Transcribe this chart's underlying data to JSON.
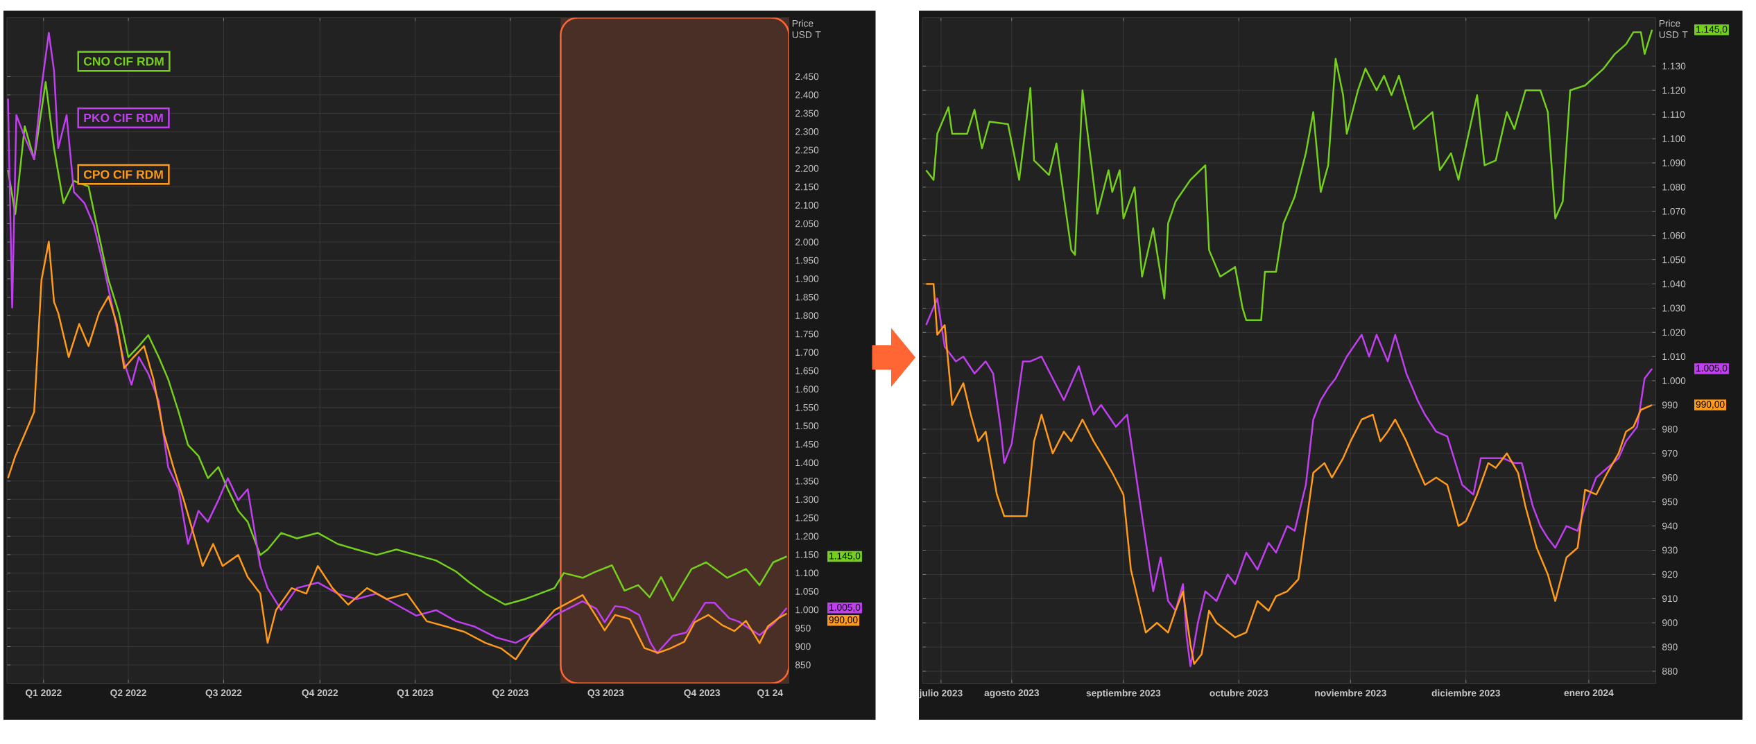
{
  "chart_data": [
    {
      "type": "line",
      "ylabel": "Price USD T",
      "grid": true,
      "legend": "top left",
      "xlim": [
        "2022-01-20",
        "2024-02-06"
      ],
      "ylim": [
        800,
        2610
      ],
      "xticks": [
        {
          "value": "2022-02-24",
          "label": "Q1 2022"
        },
        {
          "value": "2022-05-16",
          "label": "Q2 2022"
        },
        {
          "value": "2022-08-15",
          "label": "Q3 2022"
        },
        {
          "value": "2022-11-15",
          "label": "Q4 2022"
        },
        {
          "value": "2023-02-14",
          "label": "Q1 2023"
        },
        {
          "value": "2023-05-16",
          "label": "Q2 2023"
        },
        {
          "value": "2023-08-15",
          "label": "Q3 2023"
        },
        {
          "value": "2023-11-15",
          "label": "Q4 2023"
        },
        {
          "value": "2024-01-19",
          "label": "Q1 24"
        }
      ],
      "yticks": [
        850,
        900,
        950,
        {
          "value": 1000,
          "label": "1.000"
        },
        {
          "value": 1050,
          "label": "1.050"
        },
        {
          "value": 1100,
          "label": "1.100"
        },
        {
          "value": 1150,
          "label": "1.150"
        },
        {
          "value": 1200,
          "label": "1.200"
        },
        {
          "value": 1250,
          "label": "1.250"
        },
        {
          "value": 1300,
          "label": "1.300"
        },
        {
          "value": 1350,
          "label": "1.350"
        },
        {
          "value": 1400,
          "label": "1.400"
        },
        {
          "value": 1450,
          "label": "1.450"
        },
        {
          "value": 1500,
          "label": "1.500"
        },
        {
          "value": 1550,
          "label": "1.550"
        },
        {
          "value": 1600,
          "label": "1.600"
        },
        {
          "value": 1650,
          "label": "1.650"
        },
        {
          "value": 1700,
          "label": "1.700"
        },
        {
          "value": 1750,
          "label": "1.750"
        },
        {
          "value": 1800,
          "label": "1.800"
        },
        {
          "value": 1850,
          "label": "1.850"
        },
        {
          "value": 1900,
          "label": "1.900"
        },
        {
          "value": 1950,
          "label": "1.950"
        },
        {
          "value": 2000,
          "label": "2.000"
        },
        {
          "value": 2050,
          "label": "2.050"
        },
        {
          "value": 2100,
          "label": "2.100"
        },
        {
          "value": 2150,
          "label": "2.150"
        },
        {
          "value": 2200,
          "label": "2.200"
        },
        {
          "value": 2250,
          "label": "2.250"
        },
        {
          "value": 2300,
          "label": "2.300"
        },
        {
          "value": 2350,
          "label": "2.350"
        },
        {
          "value": 2400,
          "label": "2.400"
        },
        {
          "value": 2450,
          "label": "2.450"
        }
      ],
      "bands": [
        {
          "axis": "x",
          "from": "2023-07-03",
          "to": "2024-02-06",
          "color": "#4a2f26"
        }
      ],
      "annotations": [
        "1.145,0",
        "1.005,0",
        "990,00"
      ],
      "series": [
        {
          "name": "CNO CIF RDM",
          "color": "#74d01c",
          "x": [
            "2022-01-21",
            "2022-01-28",
            "2022-02-06",
            "2022-02-15",
            "2022-02-26",
            "2022-03-06",
            "2022-03-15",
            "2022-03-25",
            "2022-04-08",
            "2022-04-18",
            "2022-04-27",
            "2022-05-07",
            "2022-05-16",
            "2022-05-26",
            "2022-06-04",
            "2022-06-14",
            "2022-06-23",
            "2022-07-03",
            "2022-07-12",
            "2022-07-22",
            "2022-07-31",
            "2022-08-10",
            "2022-08-19",
            "2022-08-29",
            "2022-09-07",
            "2022-09-19",
            "2022-09-26",
            "2022-10-09",
            "2022-10-24",
            "2022-11-13",
            "2022-12-02",
            "2022-12-20",
            "2023-01-08",
            "2023-01-27",
            "2023-02-15",
            "2023-03-06",
            "2023-03-25",
            "2023-04-07",
            "2023-04-22",
            "2023-05-11",
            "2023-05-30",
            "2023-06-13",
            "2023-06-27",
            "2023-07-06",
            "2023-07-24",
            "2023-08-04",
            "2023-08-21",
            "2023-09-02",
            "2023-09-15",
            "2023-09-26",
            "2023-10-07",
            "2023-10-18",
            "2023-11-05",
            "2023-11-19",
            "2023-12-09",
            "2023-12-27",
            "2024-01-09",
            "2024-01-22",
            "2024-02-04"
          ],
          "values": [
            2196,
            2076,
            2315,
            2225,
            2435,
            2255,
            2106,
            2166,
            2151,
            2016,
            1897,
            1807,
            1687,
            1717,
            1747,
            1687,
            1627,
            1538,
            1448,
            1418,
            1358,
            1388,
            1328,
            1269,
            1239,
            1149,
            1164,
            1209,
            1194,
            1209,
            1179,
            1164,
            1149,
            1164,
            1149,
            1134,
            1104,
            1074,
            1044,
            1014,
            1029,
            1044,
            1059,
            1100,
            1087,
            1102,
            1121,
            1052,
            1067,
            1034,
            1089,
            1025,
            1111,
            1129,
            1087,
            1111,
            1067,
            1129,
            1145
          ]
        },
        {
          "name": "PKO CIF RDM",
          "color": "#c040f0",
          "x": [
            "2022-01-21",
            "2022-01-25",
            "2022-01-29",
            "2022-02-06",
            "2022-02-15",
            "2022-02-22",
            "2022-03-01",
            "2022-03-06",
            "2022-03-10",
            "2022-03-18",
            "2022-03-25",
            "2022-04-04",
            "2022-04-13",
            "2022-04-23",
            "2022-05-02",
            "2022-05-12",
            "2022-05-19",
            "2022-05-26",
            "2022-06-04",
            "2022-06-14",
            "2022-06-23",
            "2022-07-03",
            "2022-07-12",
            "2022-07-22",
            "2022-07-31",
            "2022-08-10",
            "2022-08-19",
            "2022-08-29",
            "2022-09-07",
            "2022-09-19",
            "2022-09-26",
            "2022-10-09",
            "2022-10-24",
            "2022-11-13",
            "2022-12-02",
            "2022-12-20",
            "2023-01-08",
            "2023-01-27",
            "2023-02-15",
            "2023-03-06",
            "2023-03-25",
            "2023-04-12",
            "2023-05-02",
            "2023-05-21",
            "2023-06-09",
            "2023-06-27",
            "2023-07-24",
            "2023-08-06",
            "2023-08-14",
            "2023-08-24",
            "2023-09-03",
            "2023-09-16",
            "2023-09-27",
            "2023-10-03",
            "2023-10-18",
            "2023-10-31",
            "2023-11-18",
            "2023-11-27",
            "2023-12-11",
            "2023-12-20",
            "2024-01-09",
            "2024-01-23",
            "2024-02-04"
          ],
          "values": [
            2390,
            1822,
            2345,
            2285,
            2225,
            2420,
            2569,
            2465,
            2255,
            2345,
            2136,
            2106,
            2046,
            1926,
            1807,
            1672,
            1612,
            1687,
            1642,
            1568,
            1388,
            1328,
            1179,
            1269,
            1239,
            1298,
            1358,
            1298,
            1328,
            1119,
            1059,
            999,
            1059,
            1074,
            1044,
            1029,
            1044,
            1014,
            984,
            999,
            969,
            954,
            925,
            910,
            940,
            984,
            1023,
            1003,
            966,
            1010,
            1006,
            986,
            909,
            882,
            929,
            938,
            1019,
            1019,
            977,
            968,
            931,
            964,
            1005
          ]
        },
        {
          "name": "CPO CIF RDM",
          "color": "#ff9a1a",
          "x": [
            "2022-01-21",
            "2022-01-28",
            "2022-02-06",
            "2022-02-15",
            "2022-02-22",
            "2022-03-01",
            "2022-03-06",
            "2022-03-10",
            "2022-03-20",
            "2022-03-30",
            "2022-04-08",
            "2022-04-18",
            "2022-04-27",
            "2022-05-05",
            "2022-05-12",
            "2022-05-21",
            "2022-05-31",
            "2022-06-09",
            "2022-06-19",
            "2022-06-28",
            "2022-07-08",
            "2022-07-17",
            "2022-07-26",
            "2022-08-05",
            "2022-08-14",
            "2022-08-29",
            "2022-09-07",
            "2022-09-19",
            "2022-09-26",
            "2022-10-04",
            "2022-10-19",
            "2022-11-02",
            "2022-11-13",
            "2022-11-27",
            "2022-12-12",
            "2022-12-30",
            "2023-01-18",
            "2023-02-06",
            "2023-02-25",
            "2023-03-16",
            "2023-04-02",
            "2023-04-22",
            "2023-05-07",
            "2023-05-21",
            "2023-06-04",
            "2023-06-18",
            "2023-06-27",
            "2023-07-24",
            "2023-08-05",
            "2023-08-14",
            "2023-08-24",
            "2023-09-07",
            "2023-09-21",
            "2023-10-04",
            "2023-10-15",
            "2023-10-29",
            "2023-11-08",
            "2023-11-21",
            "2023-12-05",
            "2023-12-16",
            "2023-12-27",
            "2024-01-09",
            "2024-01-17",
            "2024-01-28",
            "2024-02-04"
          ],
          "values": [
            1358,
            1418,
            1478,
            1538,
            1897,
            2001,
            1837,
            1807,
            1687,
            1777,
            1717,
            1807,
            1852,
            1777,
            1657,
            1687,
            1717,
            1627,
            1478,
            1388,
            1298,
            1209,
            1119,
            1179,
            1119,
            1149,
            1089,
            1044,
            910,
            999,
            1059,
            1044,
            1119,
            1059,
            1014,
            1059,
            1029,
            1044,
            969,
            954,
            940,
            910,
            895,
            865,
            925,
            969,
            999,
            1040,
            986,
            944,
            986,
            975,
            896,
            883,
            894,
            913,
            966,
            986,
            957,
            942,
            970,
            909,
            955,
            979,
            990
          ]
        }
      ]
    },
    {
      "type": "line",
      "ylabel": "Price USD T",
      "grid": true,
      "xlim": [
        "2023-07-23",
        "2024-02-05"
      ],
      "ylim": [
        875,
        1150
      ],
      "xticks": [
        {
          "value": "2023-07-28",
          "label": "julio 2023"
        },
        {
          "value": "2023-08-16",
          "label": "agosto 2023"
        },
        {
          "value": "2023-09-15",
          "label": "septiembre 2023"
        },
        {
          "value": "2023-10-16",
          "label": "octubre 2023"
        },
        {
          "value": "2023-11-15",
          "label": "noviembre 2023"
        },
        {
          "value": "2023-12-16",
          "label": "diciembre 2023"
        },
        {
          "value": "2024-01-18",
          "label": "enero 2024"
        }
      ],
      "yticks": [
        880,
        890,
        900,
        910,
        920,
        930,
        940,
        950,
        960,
        970,
        980,
        990,
        {
          "value": 1000,
          "label": "1.000"
        },
        {
          "value": 1010,
          "label": "1.010"
        },
        {
          "value": 1020,
          "label": "1.020"
        },
        {
          "value": 1030,
          "label": "1.030"
        },
        {
          "value": 1040,
          "label": "1.040"
        },
        {
          "value": 1050,
          "label": "1.050"
        },
        {
          "value": 1060,
          "label": "1.060"
        },
        {
          "value": 1070,
          "label": "1.070"
        },
        {
          "value": 1080,
          "label": "1.080"
        },
        {
          "value": 1090,
          "label": "1.090"
        },
        {
          "value": 1100,
          "label": "1.100"
        },
        {
          "value": 1110,
          "label": "1.110"
        },
        {
          "value": 1120,
          "label": "1.120"
        },
        {
          "value": 1130,
          "label": "1.130"
        }
      ],
      "annotations": [
        "1.145,0",
        "1.005,0",
        "990,00"
      ],
      "series": [
        {
          "color": "#74d01c",
          "x": [
            "2023-07-24",
            "2023-07-26",
            "2023-07-27",
            "2023-07-30",
            "2023-07-31",
            "2023-08-04",
            "2023-08-06",
            "2023-08-08",
            "2023-08-10",
            "2023-08-15",
            "2023-08-18",
            "2023-08-21",
            "2023-08-22",
            "2023-08-26",
            "2023-08-28",
            "2023-09-01",
            "2023-09-02",
            "2023-09-04",
            "2023-09-05",
            "2023-09-08",
            "2023-09-11",
            "2023-09-12",
            "2023-09-14",
            "2023-09-15",
            "2023-09-18",
            "2023-09-20",
            "2023-09-23",
            "2023-09-26",
            "2023-09-27",
            "2023-09-29",
            "2023-10-03",
            "2023-10-07",
            "2023-10-08",
            "2023-10-11",
            "2023-10-15",
            "2023-10-17",
            "2023-10-18",
            "2023-10-22",
            "2023-10-23",
            "2023-10-26",
            "2023-10-28",
            "2023-10-31",
            "2023-11-03",
            "2023-11-05",
            "2023-11-07",
            "2023-11-09",
            "2023-11-11",
            "2023-11-13",
            "2023-11-14",
            "2023-11-17",
            "2023-11-19",
            "2023-11-22",
            "2023-11-24",
            "2023-11-26",
            "2023-11-28",
            "2023-12-02",
            "2023-12-07",
            "2023-12-09",
            "2023-12-12",
            "2023-12-14",
            "2023-12-17",
            "2023-12-19",
            "2023-12-21",
            "2023-12-24",
            "2023-12-27",
            "2023-12-29",
            "2024-01-01",
            "2024-01-05",
            "2024-01-07",
            "2024-01-09",
            "2024-01-11",
            "2024-01-13",
            "2024-01-17",
            "2024-01-22",
            "2024-01-25",
            "2024-01-28",
            "2024-01-30",
            "2024-02-01",
            "2024-02-02",
            "2024-02-04"
          ],
          "values": [
            1087,
            1083,
            1102,
            1113,
            1102,
            1102,
            1112,
            1096,
            1107,
            1106,
            1083,
            1121,
            1091,
            1085,
            1098,
            1054,
            1052,
            1120,
            1107,
            1069,
            1087,
            1078,
            1087,
            1067,
            1080,
            1043,
            1063,
            1034,
            1065,
            1074,
            1083,
            1089,
            1054,
            1043,
            1047,
            1030,
            1025,
            1025,
            1045,
            1045,
            1065,
            1076,
            1094,
            1111,
            1078,
            1089,
            1133,
            1118,
            1102,
            1120,
            1129,
            1120,
            1126,
            1118,
            1126,
            1104,
            1111,
            1087,
            1094,
            1083,
            1104,
            1118,
            1089,
            1091,
            1111,
            1104,
            1120,
            1120,
            1111,
            1067,
            1074,
            1120,
            1122,
            1129,
            1135,
            1139,
            1144,
            1144,
            1135,
            1145
          ]
        },
        {
          "color": "#c040f0",
          "x": [
            "2023-07-24",
            "2023-07-27",
            "2023-07-29",
            "2023-08-01",
            "2023-08-03",
            "2023-08-06",
            "2023-08-09",
            "2023-08-11",
            "2023-08-13",
            "2023-08-14",
            "2023-08-16",
            "2023-08-19",
            "2023-08-21",
            "2023-08-24",
            "2023-08-30",
            "2023-09-03",
            "2023-09-07",
            "2023-09-09",
            "2023-09-13",
            "2023-09-16",
            "2023-09-20",
            "2023-09-23",
            "2023-09-25",
            "2023-09-27",
            "2023-09-29",
            "2023-10-01",
            "2023-10-02",
            "2023-10-03",
            "2023-10-05",
            "2023-10-07",
            "2023-10-10",
            "2023-10-13",
            "2023-10-15",
            "2023-10-18",
            "2023-10-21",
            "2023-10-24",
            "2023-10-26",
            "2023-10-29",
            "2023-10-31",
            "2023-11-03",
            "2023-11-05",
            "2023-11-07",
            "2023-11-09",
            "2023-11-11",
            "2023-11-14",
            "2023-11-18",
            "2023-11-20",
            "2023-11-22",
            "2023-11-25",
            "2023-11-27",
            "2023-11-30",
            "2023-12-03",
            "2023-12-05",
            "2023-12-08",
            "2023-12-11",
            "2023-12-15",
            "2023-12-18",
            "2023-12-20",
            "2023-12-26",
            "2023-12-29",
            "2023-12-31",
            "2024-01-03",
            "2024-01-05",
            "2024-01-07",
            "2024-01-09",
            "2024-01-12",
            "2024-01-15",
            "2024-01-17",
            "2024-01-20",
            "2024-01-23",
            "2024-01-26",
            "2024-01-28",
            "2024-01-31",
            "2024-02-02",
            "2024-02-04"
          ],
          "values": [
            1023,
            1034,
            1014,
            1008,
            1010,
            1003,
            1008,
            1003,
            981,
            966,
            974,
            1008,
            1008,
            1010,
            992,
            1006,
            986,
            990,
            981,
            986,
            944,
            913,
            927,
            909,
            905,
            916,
            894,
            882,
            900,
            913,
            909,
            920,
            916,
            929,
            922,
            933,
            929,
            940,
            938,
            957,
            984,
            992,
            997,
            1001,
            1010,
            1019,
            1010,
            1019,
            1008,
            1019,
            1003,
            992,
            986,
            979,
            977,
            957,
            953,
            968,
            968,
            966,
            966,
            948,
            940,
            935,
            931,
            940,
            938,
            948,
            960,
            964,
            968,
            975,
            981,
            1001,
            1005
          ]
        },
        {
          "color": "#ff9a1a",
          "x": [
            "2023-07-24",
            "2023-07-26",
            "2023-07-27",
            "2023-07-29",
            "2023-07-31",
            "2023-08-03",
            "2023-08-05",
            "2023-08-07",
            "2023-08-09",
            "2023-08-12",
            "2023-08-14",
            "2023-08-20",
            "2023-08-22",
            "2023-08-24",
            "2023-08-27",
            "2023-08-30",
            "2023-09-01",
            "2023-09-04",
            "2023-09-07",
            "2023-09-09",
            "2023-09-12",
            "2023-09-15",
            "2023-09-17",
            "2023-09-21",
            "2023-09-24",
            "2023-09-27",
            "2023-09-29",
            "2023-10-01",
            "2023-10-03",
            "2023-10-04",
            "2023-10-06",
            "2023-10-08",
            "2023-10-10",
            "2023-10-15",
            "2023-10-18",
            "2023-10-21",
            "2023-10-24",
            "2023-10-26",
            "2023-10-29",
            "2023-11-01",
            "2023-11-03",
            "2023-11-05",
            "2023-11-08",
            "2023-11-10",
            "2023-11-13",
            "2023-11-15",
            "2023-11-18",
            "2023-11-21",
            "2023-11-23",
            "2023-11-25",
            "2023-11-27",
            "2023-11-30",
            "2023-12-03",
            "2023-12-05",
            "2023-12-08",
            "2023-12-11",
            "2023-12-14",
            "2023-12-16",
            "2023-12-19",
            "2023-12-22",
            "2023-12-24",
            "2023-12-27",
            "2023-12-30",
            "2024-01-01",
            "2024-01-04",
            "2024-01-07",
            "2024-01-09",
            "2024-01-12",
            "2024-01-15",
            "2024-01-17",
            "2024-01-20",
            "2024-01-23",
            "2024-01-26",
            "2024-01-28",
            "2024-01-30",
            "2024-02-01",
            "2024-02-04"
          ],
          "values": [
            1040,
            1040,
            1019,
            1023,
            990,
            999,
            986,
            975,
            979,
            953,
            944,
            944,
            975,
            986,
            970,
            979,
            975,
            984,
            975,
            970,
            962,
            953,
            922,
            896,
            900,
            896,
            905,
            913,
            891,
            883,
            887,
            905,
            900,
            894,
            896,
            909,
            905,
            911,
            913,
            918,
            940,
            962,
            966,
            960,
            968,
            975,
            984,
            986,
            975,
            979,
            984,
            975,
            964,
            957,
            960,
            957,
            940,
            942,
            953,
            966,
            964,
            970,
            962,
            948,
            931,
            920,
            909,
            927,
            931,
            955,
            953,
            962,
            970,
            979,
            981,
            988,
            990
          ]
        }
      ]
    }
  ]
}
